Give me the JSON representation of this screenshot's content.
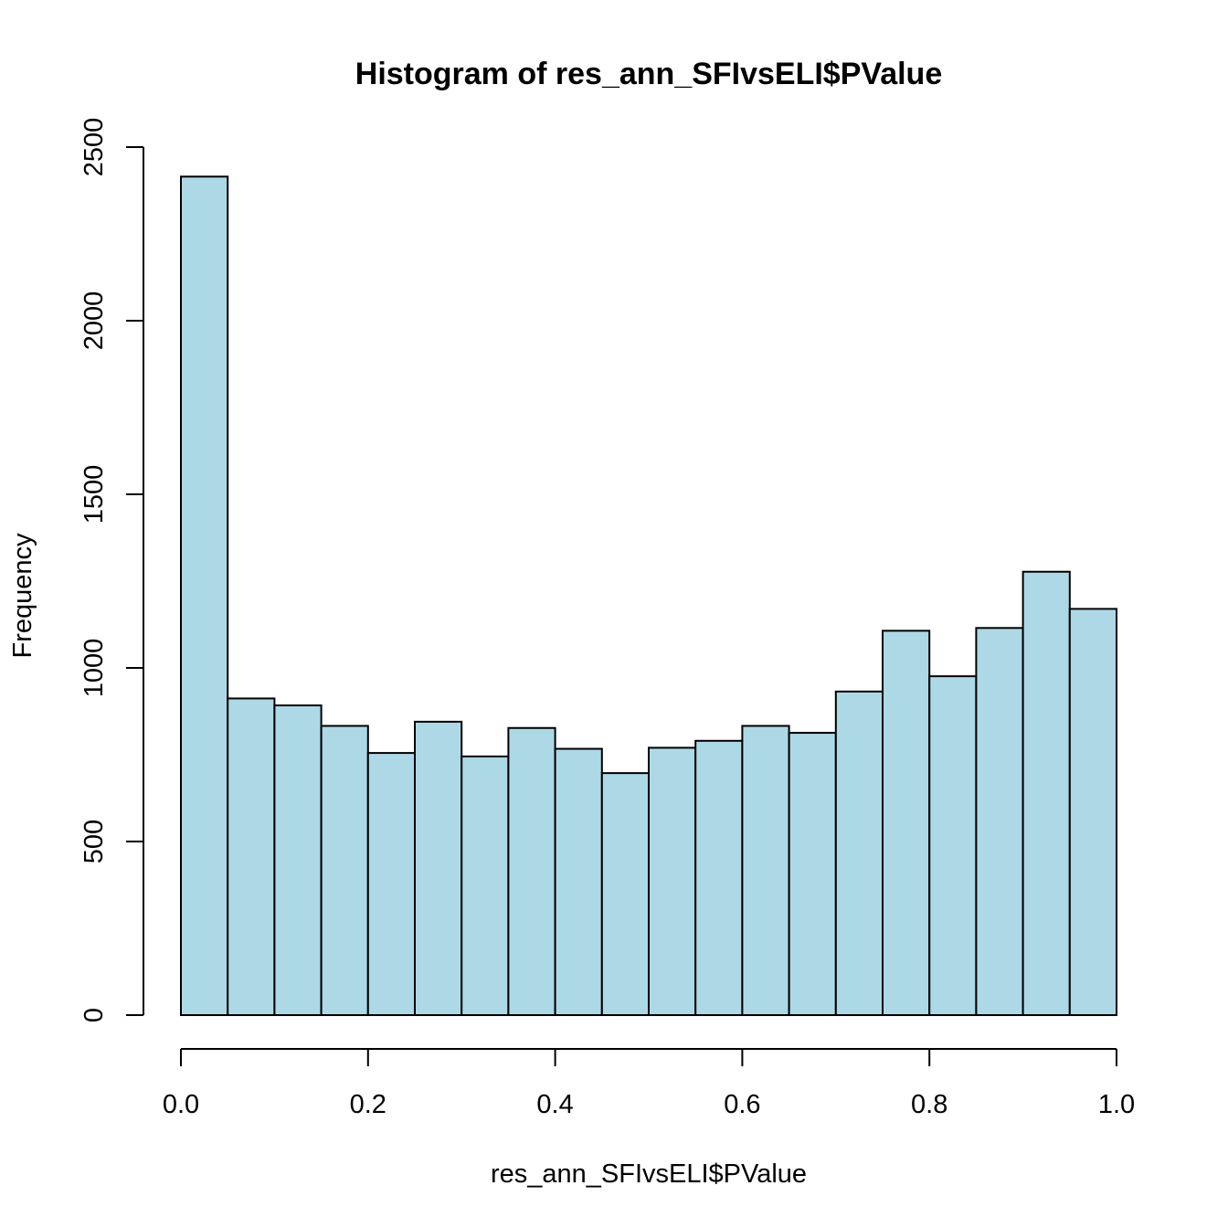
{
  "chart_data": {
    "type": "bar",
    "title": "Histogram of res_ann_SFIvsELI$PValue",
    "xlabel": "res_ann_SFIvsELI$PValue",
    "ylabel": "Frequency",
    "bar_color": "#add8e6",
    "edge_color": "#000000",
    "bin_width": 0.05,
    "bins_start": [
      0.0,
      0.05,
      0.1,
      0.15,
      0.2,
      0.25,
      0.3,
      0.35,
      0.4,
      0.45,
      0.5,
      0.55,
      0.6,
      0.65,
      0.7,
      0.75,
      0.8,
      0.85,
      0.9,
      0.95
    ],
    "values": [
      2415,
      912,
      892,
      833,
      755,
      845,
      745,
      827,
      767,
      697,
      770,
      790,
      833,
      813,
      932,
      1107,
      976,
      1115,
      1277,
      1170
    ],
    "xlim": [
      0,
      1
    ],
    "ylim": [
      0,
      2500
    ],
    "xticks": [
      0.0,
      0.2,
      0.4,
      0.6,
      0.8,
      1.0
    ],
    "xtick_labels": [
      "0.0",
      "0.2",
      "0.4",
      "0.6",
      "0.8",
      "1.0"
    ],
    "yticks": [
      0,
      500,
      1000,
      1500,
      2000,
      2500
    ],
    "ytick_labels": [
      "0",
      "500",
      "1000",
      "1500",
      "2000",
      "2500"
    ],
    "grid": false,
    "legend": "none"
  }
}
